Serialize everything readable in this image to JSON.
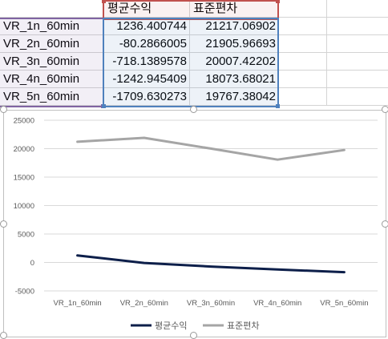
{
  "sheet": {
    "header": [
      "",
      "평균수익",
      "표준편차",
      "",
      ""
    ],
    "rows": [
      [
        "VR_1n_60min",
        "1236.400744",
        "21217.06902",
        "",
        ""
      ],
      [
        "VR_2n_60min",
        "-80.2866005",
        "21905.96693",
        "",
        ""
      ],
      [
        "VR_3n_60min",
        "-718.1389578",
        "20007.42202",
        "",
        ""
      ],
      [
        "VR_4n_60min",
        "-1242.945409",
        "18073.68021",
        "",
        ""
      ],
      [
        "VR_5n_60min",
        "-1709.630273",
        "19767.38042",
        "",
        ""
      ]
    ],
    "colors": {
      "header_range": "#c0504d",
      "category_range": "#8064a2",
      "value_range": "#4f81bd"
    }
  },
  "chart_data": {
    "type": "line",
    "categories": [
      "VR_1n_60min",
      "VR_2n_60min",
      "VR_3n_60min",
      "VR_4n_60min",
      "VR_5n_60min"
    ],
    "series": [
      {
        "name": "평균수익",
        "values": [
          1236.400744,
          -80.2866005,
          -718.1389578,
          -1242.945409,
          -1709.630273
        ],
        "color": "#0d1f4a"
      },
      {
        "name": "표준편차",
        "values": [
          21217.06902,
          21905.96693,
          20007.42202,
          18073.68021,
          19767.38042
        ],
        "color": "#a5a5a5"
      }
    ],
    "ylim": [
      -5000,
      25000
    ],
    "yticks": [
      25000,
      20000,
      15000,
      10000,
      5000,
      0,
      -5000
    ],
    "ytick_labels": [
      "25000",
      "20000",
      "15000",
      "10000",
      "5000",
      "0",
      "-5000"
    ],
    "legend_position": "bottom",
    "gridlines": true,
    "gridline_color": "#d9d9d9"
  }
}
